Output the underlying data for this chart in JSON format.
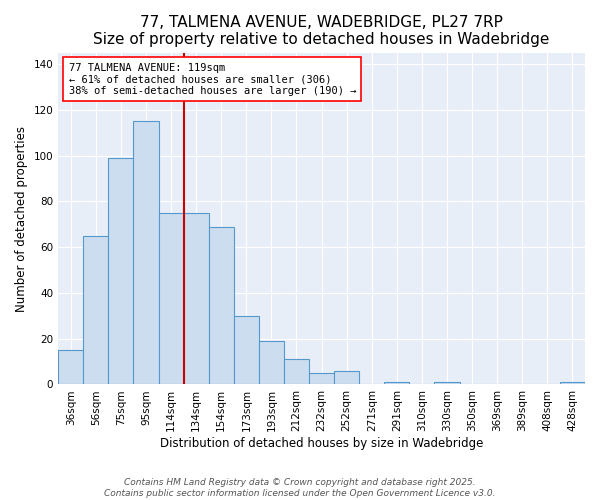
{
  "title": "77, TALMENA AVENUE, WADEBRIDGE, PL27 7RP",
  "subtitle": "Size of property relative to detached houses in Wadebridge",
  "xlabel": "Distribution of detached houses by size in Wadebridge",
  "ylabel": "Number of detached properties",
  "bar_labels": [
    "36sqm",
    "56sqm",
    "75sqm",
    "95sqm",
    "114sqm",
    "134sqm",
    "154sqm",
    "173sqm",
    "193sqm",
    "212sqm",
    "232sqm",
    "252sqm",
    "271sqm",
    "291sqm",
    "310sqm",
    "330sqm",
    "350sqm",
    "369sqm",
    "389sqm",
    "408sqm",
    "428sqm"
  ],
  "bar_values": [
    15,
    65,
    99,
    115,
    75,
    75,
    69,
    30,
    19,
    11,
    5,
    6,
    0,
    1,
    0,
    1,
    0,
    0,
    0,
    0,
    1
  ],
  "bar_color": "#ccddf0",
  "bar_edge_color": "#5599cc",
  "vline_color": "#cc0000",
  "annotation_line1": "77 TALMENA AVENUE: 119sqm",
  "annotation_line2": "← 61% of detached houses are smaller (306)",
  "annotation_line3": "38% of semi-detached houses are larger (190) →",
  "ylim": [
    0,
    145
  ],
  "yticks": [
    0,
    20,
    40,
    60,
    80,
    100,
    120,
    140
  ],
  "footer1": "Contains HM Land Registry data © Crown copyright and database right 2025.",
  "footer2": "Contains public sector information licensed under the Open Government Licence v3.0.",
  "plot_bg_color": "#e8eef8",
  "fig_bg_color": "#ffffff",
  "grid_color": "#ffffff",
  "title_fontsize": 11,
  "label_fontsize": 8.5,
  "tick_fontsize": 7.5,
  "footer_fontsize": 6.5,
  "annot_fontsize": 7.5
}
